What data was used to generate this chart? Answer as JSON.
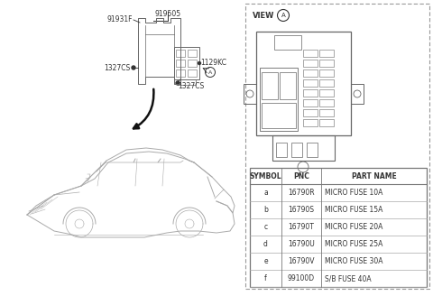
{
  "bg_color": "#ffffff",
  "line_color": "#666666",
  "dark_color": "#333333",
  "table_headers": [
    "SYMBOL",
    "PNC",
    "PART NAME"
  ],
  "table_rows": [
    [
      "a",
      "16790R",
      "MICRO FUSE 10A"
    ],
    [
      "b",
      "16790S",
      "MICRO FUSE 15A"
    ],
    [
      "c",
      "16790T",
      "MICRO FUSE 20A"
    ],
    [
      "d",
      "16790U",
      "MICRO FUSE 25A"
    ],
    [
      "e",
      "16790V",
      "MICRO FUSE 30A"
    ],
    [
      "f",
      "99100D",
      "S/B FUSE 40A"
    ]
  ],
  "label_919505": "919505",
  "label_91931F": "91931F",
  "label_1129KC": "1129KC",
  "label_1327CS_L": "1327CS",
  "label_1327CS_R": "1327CS",
  "view_text": "VIEW",
  "view_circle": "A",
  "arrow_circle": "A"
}
